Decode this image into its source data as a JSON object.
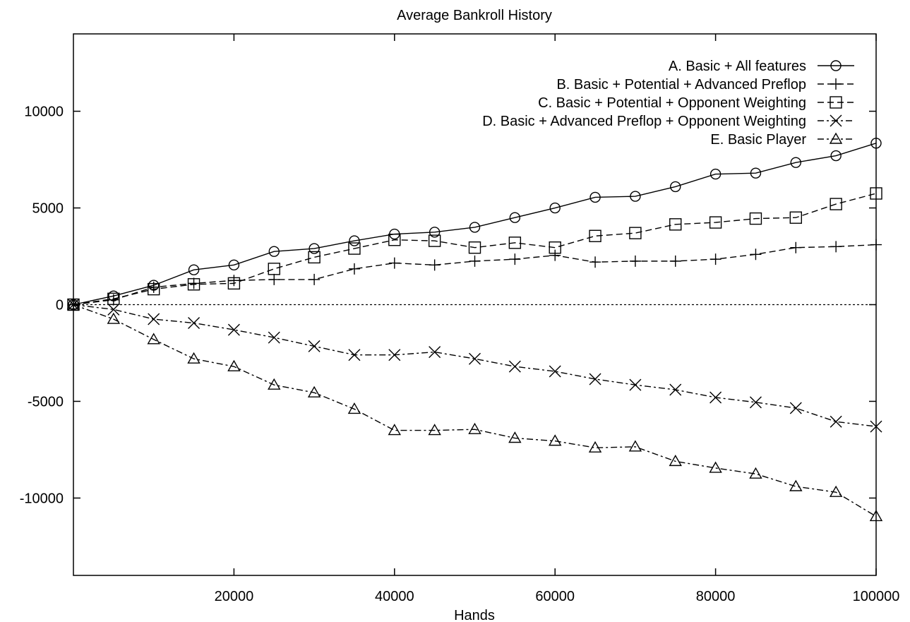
{
  "chart_data": {
    "type": "line",
    "title": "Average Bankroll History",
    "xlabel": "Hands",
    "ylabel": "",
    "xlim": [
      0,
      100000
    ],
    "ylim": [
      -14000,
      14000
    ],
    "x_ticks": [
      20000,
      40000,
      60000,
      80000,
      100000
    ],
    "x_tick_labels": [
      "20000",
      "40000",
      "60000",
      "80000",
      "100000"
    ],
    "y_ticks": [
      10000,
      5000,
      0,
      -5000,
      -10000
    ],
    "y_tick_labels": [
      "10000",
      "5000",
      "0",
      "-5000",
      "-10000"
    ],
    "grid": false,
    "zero_line": true,
    "legend_position": "top-right",
    "x": [
      0,
      5000,
      10000,
      15000,
      20000,
      25000,
      30000,
      35000,
      40000,
      45000,
      50000,
      55000,
      60000,
      65000,
      70000,
      75000,
      80000,
      85000,
      90000,
      95000,
      100000
    ],
    "series": [
      {
        "name": "A. Basic + All features",
        "marker": "diamond",
        "dash": "solid",
        "values": [
          0,
          450,
          1000,
          1800,
          2050,
          2750,
          2900,
          3300,
          3650,
          3750,
          4000,
          4500,
          5000,
          5550,
          5600,
          6100,
          6750,
          6800,
          7350,
          7700,
          8350
        ]
      },
      {
        "name": "B. Basic + Potential + Advanced Preflop",
        "marker": "plus",
        "dash": "dashed",
        "values": [
          0,
          250,
          900,
          1100,
          1250,
          1300,
          1300,
          1850,
          2150,
          2050,
          2250,
          2350,
          2550,
          2200,
          2250,
          2250,
          2350,
          2600,
          2950,
          3000,
          3100
        ]
      },
      {
        "name": "C. Basic + Potential + Opponent Weighting",
        "marker": "square",
        "dash": "dashed",
        "values": [
          0,
          300,
          800,
          1050,
          1100,
          1850,
          2450,
          2900,
          3350,
          3300,
          2950,
          3200,
          2950,
          3550,
          3700,
          4150,
          4250,
          4450,
          4500,
          5200,
          5750
        ]
      },
      {
        "name": "D. Basic + Advanced Preflop + Opponent Weighting",
        "marker": "x",
        "dash": "dashdot",
        "values": [
          0,
          -250,
          -750,
          -950,
          -1300,
          -1700,
          -2150,
          -2600,
          -2600,
          -2450,
          -2800,
          -3200,
          -3450,
          -3850,
          -4150,
          -4400,
          -4800,
          -5050,
          -5350,
          -6050,
          -6300
        ]
      },
      {
        "name": "E. Basic Player",
        "marker": "triangle",
        "dash": "dashdot",
        "values": [
          0,
          -750,
          -1800,
          -2800,
          -3200,
          -4150,
          -4550,
          -5400,
          -6500,
          -6500,
          -6450,
          -6900,
          -7050,
          -7400,
          -7350,
          -8100,
          -8450,
          -8750,
          -9400,
          -9700,
          -10950
        ]
      }
    ]
  }
}
